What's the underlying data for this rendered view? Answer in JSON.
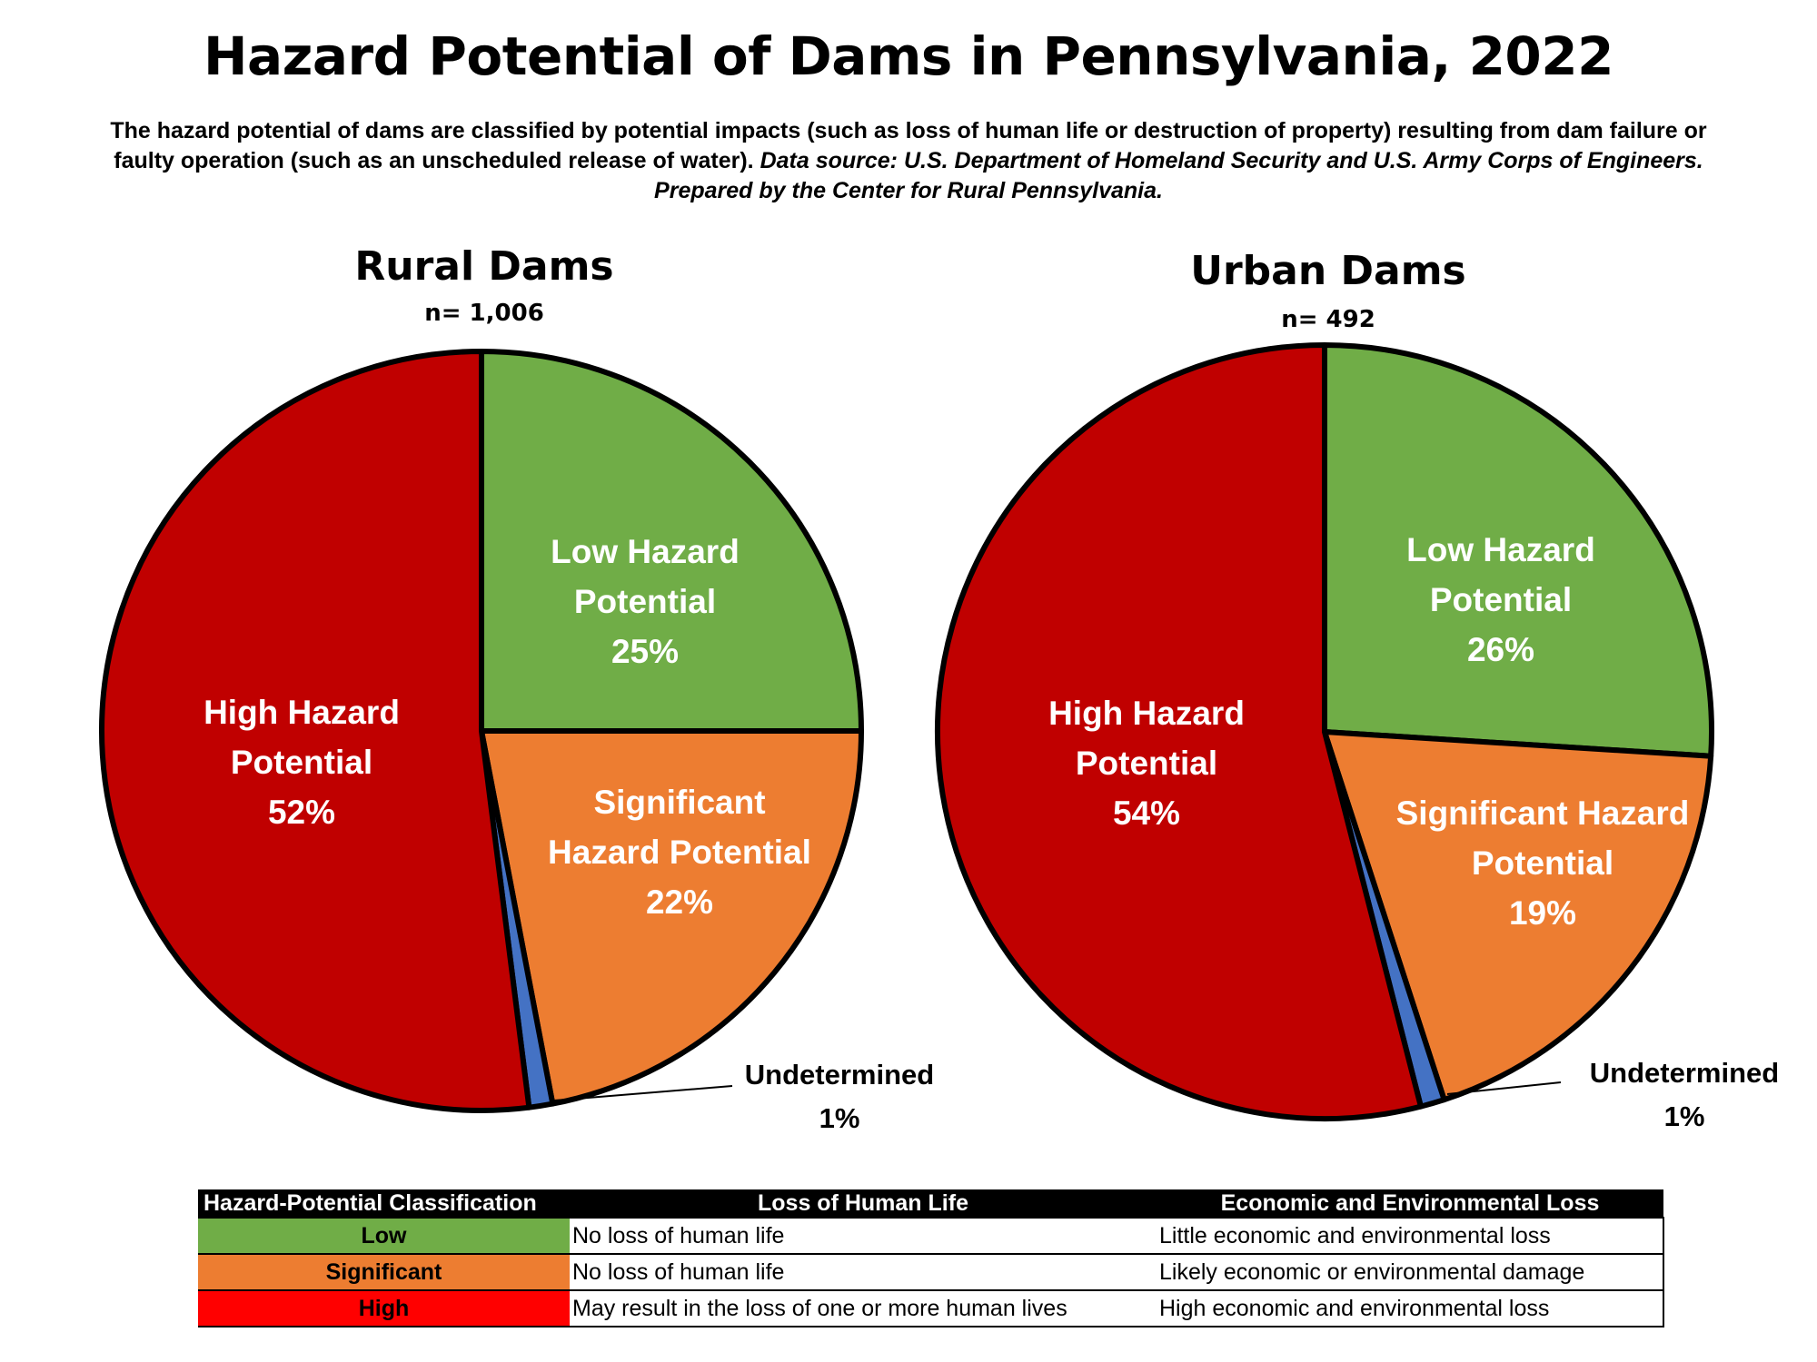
{
  "title": "Hazard Potential of Dams in Pennsylvania, 2022",
  "subtitle": {
    "text": "The hazard potential of dams are classified by potential impacts (such as loss of human life or destruction of property) resulting from dam failure or faulty operation (such as an unscheduled release of water).",
    "source": "Data source: U.S. Department of Homeland Security and U.S. Army Corps of Engineers. Prepared by the Center for Rural Pennsylvania."
  },
  "colors": {
    "low": "#70AD47",
    "significant": "#ED7D31",
    "undetermined": "#4472C4",
    "high": "#C00000",
    "table_low": "#70AD47",
    "table_significant": "#ED7D31",
    "table_high": "#FF0000",
    "outline": "#000000"
  },
  "chart_data": [
    {
      "type": "pie",
      "title": "Rural Dams",
      "subtitle": "n= 1,006",
      "categories": [
        "Low Hazard Potential",
        "Significant Hazard Potential",
        "Undetermined",
        "High Hazard Potential"
      ],
      "values": [
        25,
        22,
        1,
        52
      ],
      "labels": [
        {
          "lines": [
            "Low Hazard",
            "Potential",
            "25%"
          ]
        },
        {
          "lines": [
            "Significant",
            "Hazard Potential",
            "22%"
          ]
        },
        {
          "lines": [
            "Undetermined",
            "1%"
          ]
        },
        {
          "lines": [
            "High Hazard",
            "Potential",
            "52%"
          ]
        }
      ],
      "start_angle": 0,
      "direction": "clockwise"
    },
    {
      "type": "pie",
      "title": "Urban Dams",
      "subtitle": "n= 492",
      "categories": [
        "Low Hazard Potential",
        "Significant Hazard Potential",
        "Undetermined",
        "High Hazard Potential"
      ],
      "values": [
        26,
        19,
        1,
        54
      ],
      "labels": [
        {
          "lines": [
            "Low Hazard",
            "Potential",
            "26%"
          ]
        },
        {
          "lines": [
            "Significant Hazard",
            "Potential",
            "19%"
          ]
        },
        {
          "lines": [
            "Undetermined",
            "1%"
          ]
        },
        {
          "lines": [
            "High Hazard",
            "Potential",
            "54%"
          ]
        }
      ],
      "start_angle": 0,
      "direction": "clockwise"
    }
  ],
  "legend_table": {
    "headers": [
      "Hazard-Potential Classification",
      "Loss of Human Life",
      "Economic and Environmental Loss"
    ],
    "rows": [
      {
        "class": "Low",
        "life": "No loss of human life",
        "econ": "Little economic and environmental loss"
      },
      {
        "class": "Significant",
        "life": "No loss of human life",
        "econ": "Likely economic or environmental damage"
      },
      {
        "class": "High",
        "life": "May result in the loss of one or more human lives",
        "econ": "High economic and environmental loss"
      }
    ]
  }
}
